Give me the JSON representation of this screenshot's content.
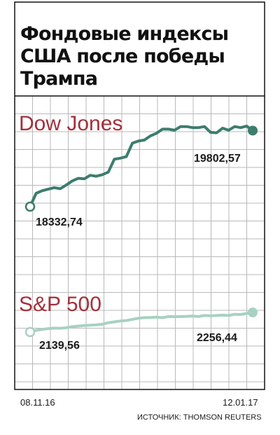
{
  "title": [
    "Фондовые индексы",
    "США после победы",
    "Трампа"
  ],
  "source": "ИСТОЧНИК: THOMSON REUTERS",
  "colors": {
    "dow": "#3c7d6d",
    "sp": "#a8d1c1",
    "series_name": "#a3303b",
    "frame": "#111111",
    "grid": "#b9b9b9"
  },
  "chart_data": {
    "type": "line",
    "title": "Фондовые индексы США после победы Трампа",
    "xlabel": "",
    "ylabel": "",
    "x_start_label": "08.11.16",
    "x_end_label": "12.01.17",
    "grid": true,
    "series": [
      {
        "name": "Dow Jones",
        "start_label": "18332,74",
        "end_label": "19802,57",
        "values": [
          18332.74,
          18590,
          18640,
          18670,
          18700,
          18680,
          18750,
          18830,
          18880,
          18870,
          18940,
          18920,
          18950,
          19000,
          19250,
          19270,
          19300,
          19560,
          19600,
          19620,
          19700,
          19750,
          19830,
          19830,
          19810,
          19880,
          19880,
          19860,
          19860,
          19880,
          19770,
          19760,
          19850,
          19810,
          19880,
          19860,
          19890,
          19802.57
        ]
      },
      {
        "name": "S&P 500",
        "start_label": "2139,56",
        "end_label": "2256,44",
        "values": [
          2139.56,
          2150,
          2155,
          2160,
          2163,
          2162,
          2165,
          2172,
          2175,
          2178,
          2180,
          2182,
          2186,
          2195,
          2200,
          2205,
          2208,
          2215,
          2222,
          2225,
          2226,
          2228,
          2225,
          2232,
          2231,
          2232,
          2233,
          2235,
          2232,
          2238,
          2236,
          2238,
          2240,
          2238,
          2245,
          2244,
          2250,
          2256.44
        ]
      }
    ]
  }
}
